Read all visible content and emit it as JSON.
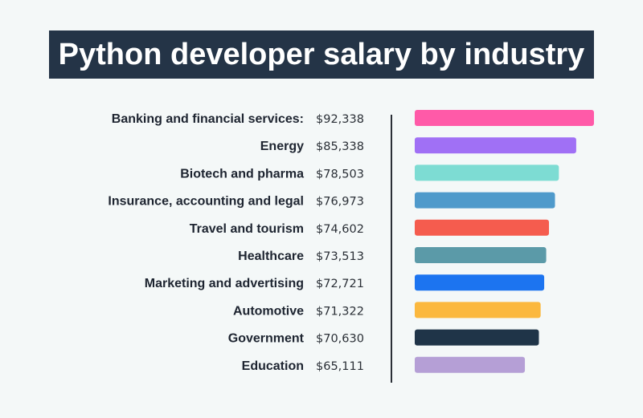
{
  "chart_data": {
    "type": "bar",
    "orientation": "horizontal",
    "title": "Python developer salary by industry",
    "categories": [
      "Banking and financial services:",
      "Energy",
      "Biotech and pharma",
      "Insurance, accounting and legal",
      "Travel and tourism",
      "Healthcare",
      "Marketing and advertising",
      "Automotive",
      "Government",
      "Education"
    ],
    "values": [
      92338,
      85338,
      78503,
      76973,
      74602,
      73513,
      72721,
      71322,
      70630,
      65111
    ],
    "value_labels": [
      "$92,338",
      "$85,338",
      "$78,503",
      "$76,973",
      "$74,602",
      "$73,513",
      "$72,721",
      "$71,322",
      "$70,630",
      "$65,111"
    ],
    "colors": [
      "#ff5aa8",
      "#a070f5",
      "#7ddcd3",
      "#4f9acb",
      "#f55c4e",
      "#5b9aa8",
      "#1c74f0",
      "#fbb83e",
      "#1f3448",
      "#b59fd6"
    ],
    "title_background": "#243447",
    "grid": false,
    "legend": "none"
  }
}
